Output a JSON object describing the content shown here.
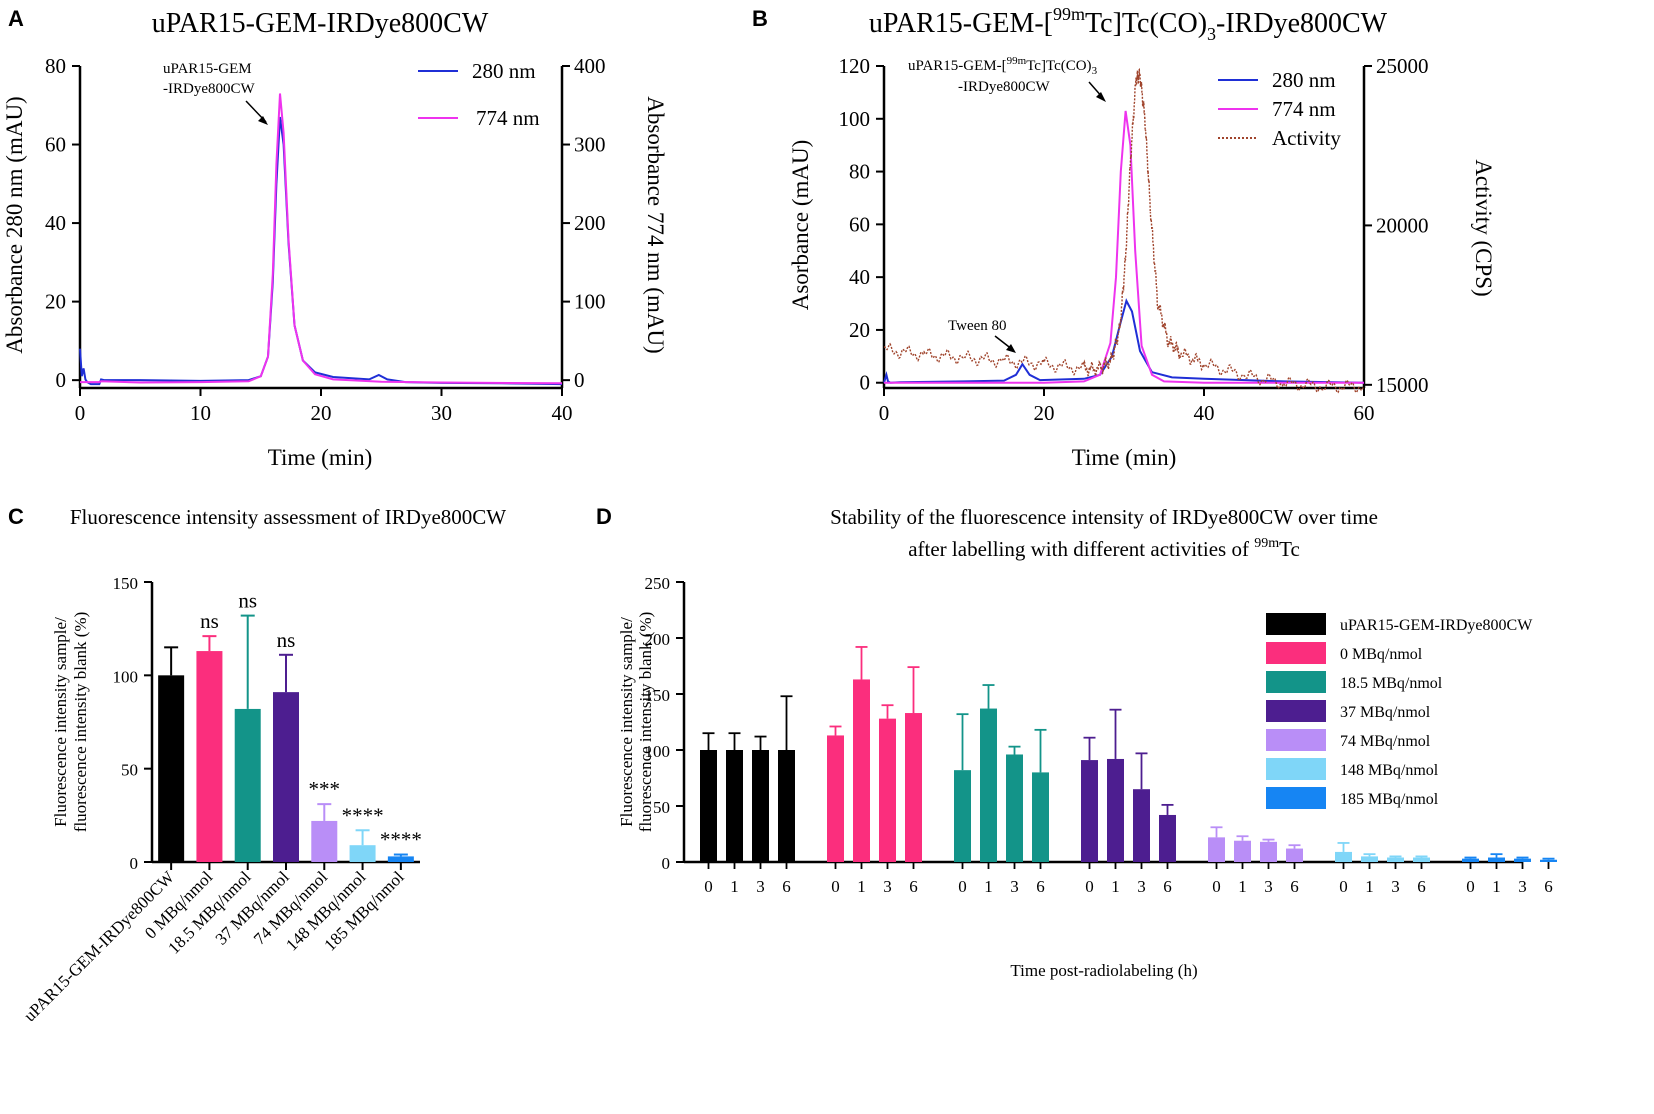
{
  "chart_data": [
    {
      "panel": "A",
      "type": "line",
      "title": "uPAR15-GEM-IRDye800CW",
      "xlabel": "Time (min)",
      "ylabel": "Absorbance 280 nm (mAU)",
      "y2label": "Absorbance 774 nm (mAU)",
      "xlim": [
        0,
        40
      ],
      "ylim": [
        -2,
        80
      ],
      "y2lim": [
        -10,
        400
      ],
      "xticks": [
        "0",
        "10",
        "20",
        "30",
        "40"
      ],
      "yticks": [
        "0",
        "20",
        "40",
        "60",
        "80"
      ],
      "y2ticks": [
        "0",
        "100",
        "200",
        "300",
        "400"
      ],
      "legend": [
        "280 nm",
        "774 nm"
      ],
      "annotation": [
        "uPAR15-GEM",
        "-IRDye800CW"
      ],
      "colors": {
        "280": "#1f2fd6",
        "774": "#ee33ee"
      },
      "series": [
        {
          "name": "280 nm",
          "axis": "left",
          "x": [
            0,
            0.15,
            0.3,
            0.45,
            0.6,
            0.9,
            1.3,
            1.6,
            1.75,
            2,
            5,
            10,
            14,
            15,
            15.6,
            16,
            16.3,
            16.6,
            16.9,
            17.3,
            17.8,
            18.5,
            19.5,
            21,
            24,
            24.8,
            25.5,
            27,
            30,
            35,
            40
          ],
          "y": [
            8,
            1,
            3,
            0.2,
            -0.5,
            -1,
            -1,
            -1,
            0.2,
            0,
            0,
            -0.2,
            0,
            1,
            6,
            25,
            50,
            67,
            60,
            35,
            14,
            5,
            2,
            0.8,
            0.2,
            1.3,
            0.2,
            -0.5,
            -0.7,
            -0.8,
            -1
          ]
        },
        {
          "name": "774 nm",
          "axis": "left",
          "x": [
            0,
            1.6,
            1.75,
            5,
            10,
            14,
            15,
            15.6,
            16,
            16.3,
            16.6,
            16.9,
            17.3,
            17.8,
            18.5,
            19.5,
            21,
            25,
            30,
            40
          ],
          "y": [
            -0.5,
            -0.5,
            -0.3,
            -0.6,
            -0.5,
            -0.3,
            1,
            6,
            27,
            55,
            73,
            63,
            36,
            14,
            5,
            1.5,
            0.2,
            -0.4,
            -0.6,
            -0.8
          ]
        }
      ]
    },
    {
      "panel": "B",
      "type": "line",
      "title_parts": [
        "uPAR15-GEM-[",
        "99m",
        "Tc]Tc(CO)",
        "3",
        "-IRDye800CW"
      ],
      "xlabel": "Time (min)",
      "ylabel": "Asorbance (mAU)",
      "y2label": "Activity (CPS)",
      "xlim": [
        0,
        60
      ],
      "ylim": [
        -2,
        120
      ],
      "y2lim": [
        14900,
        25000
      ],
      "xticks": [
        "0",
        "20",
        "40",
        "60"
      ],
      "yticks": [
        "0",
        "20",
        "40",
        "60",
        "80",
        "100",
        "120"
      ],
      "y2ticks": [
        "15000",
        "20000",
        "25000"
      ],
      "legend": [
        "280 nm",
        "774 nm",
        "Activity"
      ],
      "annotation_parts": [
        "uPAR15-GEM-[",
        "99m",
        "Tc]Tc(CO)",
        "3",
        "-IRDye800CW"
      ],
      "annotation2": "Tween 80",
      "colors": {
        "280": "#1f2fd6",
        "774": "#ee33ee",
        "activity": "#a0442c"
      },
      "series": [
        {
          "name": "280 nm",
          "axis": "left",
          "x": [
            0,
            0.3,
            0.5,
            0.8,
            2,
            10,
            15,
            16.5,
            17.3,
            18.2,
            19.5,
            25,
            27,
            28.5,
            29.5,
            30.3,
            31,
            32,
            33.5,
            36,
            40,
            50,
            60
          ],
          "y": [
            0,
            3,
            0.5,
            0,
            0.2,
            0.5,
            0.8,
            3,
            7,
            3,
            1,
            1.5,
            3,
            10,
            22,
            31,
            27,
            12,
            4,
            2,
            1.5,
            0.5,
            0
          ]
        },
        {
          "name": "774 nm",
          "axis": "left",
          "x": [
            0,
            20,
            25,
            27,
            28.3,
            29,
            29.6,
            30.2,
            30.8,
            31.4,
            32.2,
            33.5,
            35,
            40,
            60
          ],
          "y": [
            0,
            0,
            0.5,
            3,
            15,
            40,
            80,
            103,
            90,
            50,
            14,
            3,
            0.5,
            0,
            0
          ]
        },
        {
          "name": "Activity",
          "axis": "right",
          "x": [
            0,
            5,
            10,
            15,
            20,
            25,
            27,
            28.5,
            29.5,
            30.2,
            30.8,
            31.5,
            32,
            32.6,
            33.3,
            34.2,
            35.5,
            37,
            40,
            45,
            50,
            55,
            60
          ],
          "y": [
            16100,
            15950,
            15850,
            15750,
            15650,
            15500,
            15500,
            15800,
            16800,
            19000,
            22000,
            24600,
            24700,
            23400,
            20500,
            17600,
            16400,
            16000,
            15650,
            15300,
            15050,
            14950,
            14950
          ]
        }
      ]
    },
    {
      "panel": "C",
      "type": "bar",
      "title": "Fluorescence intensity assessment of IRDye800CW",
      "ylabel_lines": [
        "Fluorescence intensity sample/",
        "fluorescence intensity blank (%)"
      ],
      "ylim": [
        0,
        150
      ],
      "yticks": [
        "0",
        "50",
        "100",
        "150"
      ],
      "categories": [
        "uPAR15-GEM-IRDye800CW",
        "0 MBq/nmol",
        "18.5 MBq/nmol",
        "37 MBq/nmol",
        "74 MBq/nmol",
        "148 MBq/nmol",
        "185 MBq/nmol"
      ],
      "values": [
        100,
        113,
        82,
        91,
        22,
        9,
        3
      ],
      "errors": [
        15,
        8,
        50,
        20,
        9,
        8,
        1
      ],
      "significance": [
        "",
        "ns",
        "ns",
        "ns",
        "***",
        "****",
        "****"
      ],
      "colors": [
        "#000000",
        "#fb2e7d",
        "#139489",
        "#4d1e90",
        "#b98ef7",
        "#7fd6f8",
        "#1685f3"
      ]
    },
    {
      "panel": "D",
      "type": "bar",
      "title_line1": "Stability of the fluorescence intensity of IRDye800CW over time",
      "title_line2_parts": [
        "after labelling with different activities of ",
        "99m",
        "Tc"
      ],
      "ylabel_lines": [
        "Fluorescence intensity sample/",
        "fluorescence intensity blank (%)"
      ],
      "xlabel": "Time post-radiolabeling (h)",
      "ylim": [
        0,
        250
      ],
      "yticks": [
        "0",
        "50",
        "100",
        "150",
        "200",
        "250"
      ],
      "categories": [
        "0",
        "1",
        "3",
        "6"
      ],
      "series": [
        {
          "name": "uPAR15-GEM-IRDye800CW",
          "color": "#000000",
          "values": [
            100,
            100,
            100,
            100
          ],
          "errors": [
            15,
            15,
            12,
            48
          ]
        },
        {
          "name": "0 MBq/nmol",
          "color": "#fb2e7d",
          "values": [
            113,
            163,
            128,
            133
          ],
          "errors": [
            8,
            29,
            12,
            41
          ]
        },
        {
          "name": "18.5 MBq/nmol",
          "color": "#139489",
          "values": [
            82,
            137,
            96,
            80
          ],
          "errors": [
            50,
            21,
            7,
            38
          ]
        },
        {
          "name": "37 MBq/nmol",
          "color": "#4d1e90",
          "values": [
            91,
            92,
            65,
            42
          ],
          "errors": [
            20,
            44,
            32,
            9
          ]
        },
        {
          "name": "74 MBq/nmol",
          "color": "#b98ef7",
          "values": [
            22,
            19,
            18,
            12
          ],
          "errors": [
            9,
            4,
            2,
            3
          ]
        },
        {
          "name": "148 MBq/nmol",
          "color": "#7fd6f8",
          "values": [
            9,
            5,
            4,
            4
          ],
          "errors": [
            8,
            2,
            1,
            1
          ]
        },
        {
          "name": "185 MBq/nmol",
          "color": "#1685f3",
          "values": [
            3,
            4,
            3,
            2
          ],
          "errors": [
            1,
            3,
            1,
            1
          ]
        }
      ]
    }
  ]
}
